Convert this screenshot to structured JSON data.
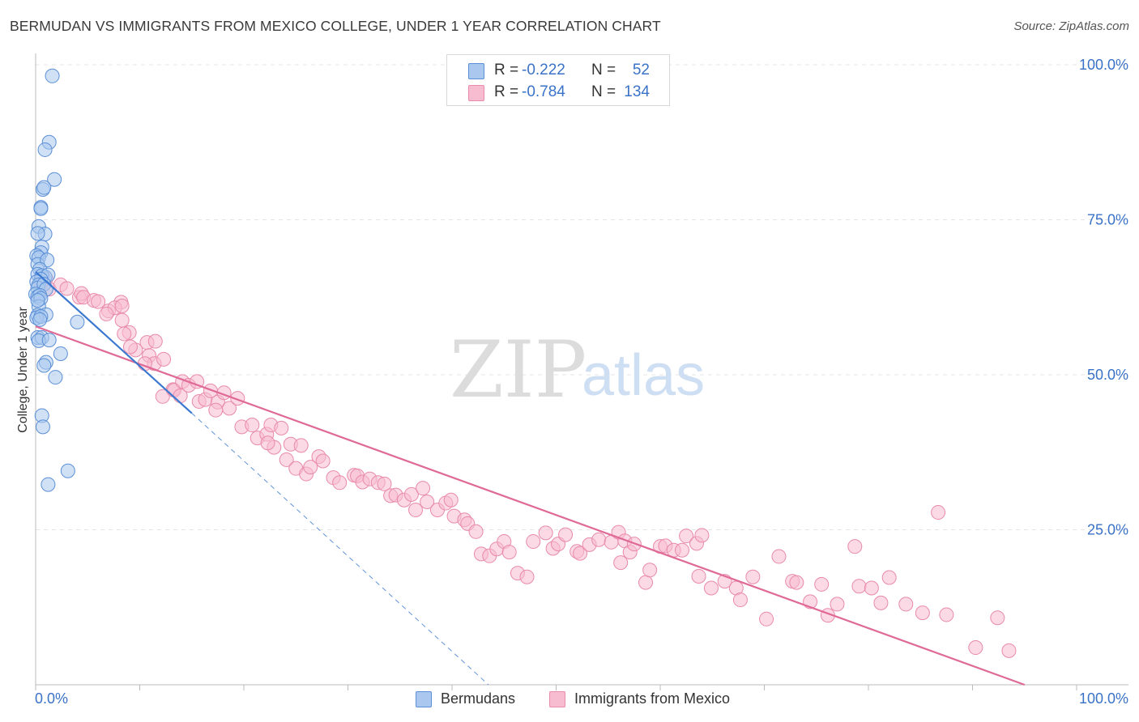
{
  "chart_data": {
    "type": "scatter",
    "title": "BERMUDAN VS IMMIGRANTS FROM MEXICO COLLEGE, UNDER 1 YEAR CORRELATION CHART",
    "source": "Source: ZipAtlas.com",
    "xlabel": "",
    "ylabel": "College, Under 1 year",
    "xlim": [
      0,
      100
    ],
    "ylim": [
      0,
      100
    ],
    "x_tick_labels": {
      "left": "0.0%",
      "right": "100.0%"
    },
    "y_tick_labels": [
      "100.0%",
      "75.0%",
      "50.0%",
      "25.0%"
    ],
    "y_tick_values": [
      100,
      75,
      50,
      25
    ],
    "grid": true,
    "watermark": "ZIPatlas",
    "stats": [
      {
        "r_label": "R =",
        "r_value": "-0.222",
        "n_label": "N =",
        "n_value": "52"
      },
      {
        "r_label": "R =",
        "r_value": "-0.784",
        "n_label": "N =",
        "n_value": "134"
      }
    ],
    "legend": [
      "Bermudans",
      "Immigrants from Mexico"
    ],
    "colors": {
      "bermudans_fill": "#aac8ef",
      "bermudans_stroke": "#5b8fd6",
      "bermudans_line": "#3a78d0",
      "mexico_fill": "#f7bcd0",
      "mexico_stroke": "#e98aaa",
      "mexico_line": "#e06a96",
      "value_text": "#3a72c7",
      "grid": "#e4e4e4"
    },
    "series": [
      {
        "name": "Bermudans",
        "points": [
          [
            1.6,
            98.2
          ],
          [
            1.3,
            87.5
          ],
          [
            0.9,
            86.3
          ],
          [
            1.8,
            81.5
          ],
          [
            0.7,
            79.9
          ],
          [
            0.8,
            80.2
          ],
          [
            0.5,
            77.0
          ],
          [
            0.5,
            76.8
          ],
          [
            0.3,
            73.9
          ],
          [
            0.9,
            72.7
          ],
          [
            0.2,
            72.8
          ],
          [
            0.6,
            70.6
          ],
          [
            0.5,
            69.7
          ],
          [
            0.1,
            69.2
          ],
          [
            0.3,
            68.9
          ],
          [
            0.2,
            67.8
          ],
          [
            1.1,
            68.5
          ],
          [
            0.4,
            67.0
          ],
          [
            0.2,
            66.2
          ],
          [
            0.9,
            65.8
          ],
          [
            0.6,
            66.0
          ],
          [
            1.2,
            66.1
          ],
          [
            0.5,
            65.4
          ],
          [
            0.1,
            65.0
          ],
          [
            0.3,
            64.5
          ],
          [
            0.2,
            64.0
          ],
          [
            0.8,
            64.6
          ],
          [
            1.0,
            63.8
          ],
          [
            0.0,
            63.0
          ],
          [
            0.2,
            62.6
          ],
          [
            0.4,
            62.8
          ],
          [
            0.5,
            62.3
          ],
          [
            0.3,
            61.0
          ],
          [
            0.2,
            59.6
          ],
          [
            1.0,
            59.7
          ],
          [
            0.1,
            59.2
          ],
          [
            0.5,
            59.4
          ],
          [
            0.4,
            58.9
          ],
          [
            4.0,
            58.5
          ],
          [
            0.2,
            56.0
          ],
          [
            0.6,
            56.0
          ],
          [
            0.3,
            55.5
          ],
          [
            1.3,
            55.6
          ],
          [
            2.4,
            53.4
          ],
          [
            1.0,
            52.0
          ],
          [
            0.8,
            51.5
          ],
          [
            1.9,
            49.6
          ],
          [
            0.6,
            43.4
          ],
          [
            0.7,
            41.6
          ],
          [
            3.1,
            34.5
          ],
          [
            1.2,
            32.3
          ],
          [
            0.2,
            62.0
          ]
        ]
      },
      {
        "name": "Immigrants from Mexico",
        "points": [
          [
            0.5,
            64.5
          ],
          [
            1.0,
            65.5
          ],
          [
            1.3,
            63.8
          ],
          [
            2.4,
            64.5
          ],
          [
            3.0,
            63.9
          ],
          [
            4.2,
            62.5
          ],
          [
            4.4,
            63.1
          ],
          [
            4.6,
            62.5
          ],
          [
            5.6,
            62.0
          ],
          [
            6.0,
            61.8
          ],
          [
            7.0,
            60.3
          ],
          [
            8.2,
            61.7
          ],
          [
            8.3,
            58.8
          ],
          [
            7.6,
            60.8
          ],
          [
            8.3,
            61.1
          ],
          [
            6.8,
            59.8
          ],
          [
            9.0,
            56.8
          ],
          [
            8.5,
            56.6
          ],
          [
            9.6,
            54.0
          ],
          [
            9.1,
            54.5
          ],
          [
            10.7,
            55.2
          ],
          [
            10.9,
            53.1
          ],
          [
            11.4,
            51.8
          ],
          [
            11.5,
            55.4
          ],
          [
            10.5,
            51.8
          ],
          [
            12.3,
            52.5
          ],
          [
            13.2,
            47.6
          ],
          [
            12.2,
            46.5
          ],
          [
            13.3,
            47.5
          ],
          [
            13.9,
            46.6
          ],
          [
            14.1,
            48.9
          ],
          [
            14.7,
            48.3
          ],
          [
            15.5,
            48.9
          ],
          [
            15.7,
            45.7
          ],
          [
            16.3,
            46.0
          ],
          [
            17.5,
            45.6
          ],
          [
            18.6,
            44.6
          ],
          [
            16.8,
            47.4
          ],
          [
            17.3,
            44.3
          ],
          [
            18.1,
            47.1
          ],
          [
            19.4,
            46.2
          ],
          [
            19.8,
            41.6
          ],
          [
            20.8,
            41.9
          ],
          [
            21.3,
            39.8
          ],
          [
            22.2,
            40.4
          ],
          [
            22.9,
            38.3
          ],
          [
            22.6,
            41.9
          ],
          [
            23.6,
            41.4
          ],
          [
            22.3,
            39.0
          ],
          [
            24.1,
            36.3
          ],
          [
            24.5,
            38.8
          ],
          [
            25.0,
            34.9
          ],
          [
            25.5,
            38.6
          ],
          [
            26.0,
            34.0
          ],
          [
            26.4,
            35.1
          ],
          [
            27.2,
            36.8
          ],
          [
            27.6,
            36.1
          ],
          [
            28.6,
            33.4
          ],
          [
            29.2,
            32.6
          ],
          [
            30.6,
            33.8
          ],
          [
            30.9,
            33.7
          ],
          [
            31.4,
            32.7
          ],
          [
            32.1,
            33.2
          ],
          [
            32.9,
            32.6
          ],
          [
            33.5,
            32.4
          ],
          [
            34.1,
            30.5
          ],
          [
            34.6,
            30.6
          ],
          [
            35.4,
            29.8
          ],
          [
            36.5,
            28.2
          ],
          [
            36.1,
            30.7
          ],
          [
            37.2,
            31.7
          ],
          [
            37.6,
            29.5
          ],
          [
            38.6,
            28.2
          ],
          [
            39.4,
            29.3
          ],
          [
            39.9,
            29.8
          ],
          [
            40.2,
            27.2
          ],
          [
            41.2,
            26.6
          ],
          [
            41.5,
            26.0
          ],
          [
            42.3,
            24.7
          ],
          [
            42.8,
            21.1
          ],
          [
            43.6,
            20.8
          ],
          [
            44.3,
            21.9
          ],
          [
            45.0,
            23.1
          ],
          [
            45.5,
            21.4
          ],
          [
            46.3,
            18.0
          ],
          [
            47.2,
            17.4
          ],
          [
            47.8,
            23.1
          ],
          [
            49.0,
            24.5
          ],
          [
            49.7,
            22.0
          ],
          [
            50.2,
            22.7
          ],
          [
            50.9,
            24.2
          ],
          [
            52.0,
            21.5
          ],
          [
            52.3,
            21.2
          ],
          [
            53.2,
            22.6
          ],
          [
            54.1,
            23.4
          ],
          [
            55.3,
            23.0
          ],
          [
            56.0,
            24.6
          ],
          [
            56.2,
            19.7
          ],
          [
            56.6,
            23.2
          ],
          [
            57.1,
            21.4
          ],
          [
            57.5,
            22.7
          ],
          [
            58.6,
            16.5
          ],
          [
            59.0,
            18.5
          ],
          [
            60.0,
            22.3
          ],
          [
            60.5,
            22.4
          ],
          [
            61.3,
            21.7
          ],
          [
            62.1,
            21.7
          ],
          [
            62.5,
            24.0
          ],
          [
            63.5,
            22.8
          ],
          [
            64.0,
            24.1
          ],
          [
            63.7,
            17.5
          ],
          [
            64.9,
            15.6
          ],
          [
            66.2,
            16.7
          ],
          [
            67.3,
            15.6
          ],
          [
            67.7,
            13.7
          ],
          [
            68.9,
            17.4
          ],
          [
            70.2,
            10.6
          ],
          [
            71.4,
            20.7
          ],
          [
            72.7,
            16.7
          ],
          [
            73.1,
            16.5
          ],
          [
            74.4,
            13.4
          ],
          [
            75.5,
            16.2
          ],
          [
            76.1,
            11.2
          ],
          [
            77.0,
            13.0
          ],
          [
            78.7,
            22.3
          ],
          [
            79.1,
            15.9
          ],
          [
            80.3,
            15.6
          ],
          [
            81.2,
            13.2
          ],
          [
            82.0,
            17.3
          ],
          [
            83.6,
            13.0
          ],
          [
            85.2,
            11.6
          ],
          [
            86.7,
            27.8
          ],
          [
            87.5,
            11.3
          ],
          [
            90.3,
            6.0
          ],
          [
            92.4,
            10.8
          ],
          [
            93.5,
            5.5
          ]
        ]
      }
    ],
    "fit_lines": [
      {
        "name": "Bermudans",
        "from": [
          0.0,
          66.6
        ],
        "to": [
          15.0,
          43.8
        ],
        "dashed_from": [
          15.0,
          43.8
        ],
        "dashed_to": [
          43.5,
          0.0
        ]
      },
      {
        "name": "Immigrants from Mexico",
        "from": [
          0.0,
          57.8
        ],
        "to": [
          95.0,
          0.0
        ]
      }
    ]
  }
}
